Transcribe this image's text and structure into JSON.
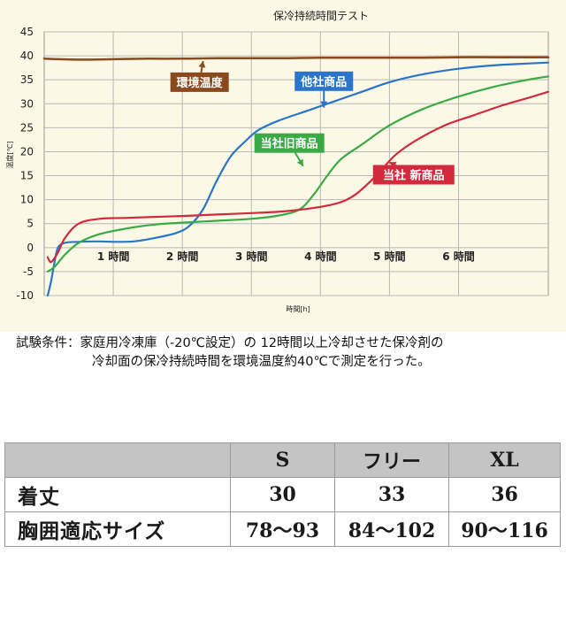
{
  "chart_data": {
    "type": "line",
    "title": "保冷持続時間テスト",
    "ylabel": "温度[℃]",
    "xlabel": "時間[h]",
    "ylim": [
      -10,
      45
    ],
    "xlim": [
      0,
      7.3
    ],
    "y_ticks": [
      "45",
      "40",
      "35",
      "30",
      "25",
      "20",
      "15",
      "10",
      "5",
      "0",
      "-5",
      "-10"
    ],
    "x_ticks": [
      {
        "value": 1,
        "label": "1 時間"
      },
      {
        "value": 2,
        "label": "2 時間"
      },
      {
        "value": 3,
        "label": "3 時間"
      },
      {
        "value": 4,
        "label": "4 時間"
      },
      {
        "value": 5,
        "label": "5 時間"
      },
      {
        "value": 6,
        "label": "6 時間"
      }
    ],
    "grid": true,
    "series": [
      {
        "name": "環境温度",
        "color": "#8b4a1e",
        "x": [
          0,
          0.5,
          1,
          1.5,
          2,
          2.5,
          3,
          3.5,
          4,
          4.5,
          5,
          5.5,
          6,
          6.5,
          7,
          7.3
        ],
        "y": [
          39.4,
          39.2,
          39.3,
          39.4,
          39.4,
          39.5,
          39.5,
          39.5,
          39.6,
          39.6,
          39.6,
          39.6,
          39.7,
          39.7,
          39.7,
          39.7
        ]
      },
      {
        "name": "他社商品",
        "color": "#2a74c9",
        "x": [
          0.05,
          0.1,
          0.15,
          0.2,
          0.3,
          0.5,
          0.8,
          1.0,
          1.3,
          1.6,
          1.9,
          2.1,
          2.3,
          2.5,
          2.7,
          2.9,
          3.1,
          3.4,
          3.8,
          4.2,
          4.6,
          5.0,
          5.5,
          6.0,
          6.5,
          7.0,
          7.3
        ],
        "y": [
          -10,
          -7,
          -3,
          0,
          1,
          1.2,
          1.3,
          1.2,
          1.3,
          2,
          3,
          4.5,
          8,
          14,
          19,
          22,
          24.5,
          26.5,
          28.5,
          30.5,
          32.5,
          34.5,
          36.2,
          37.3,
          38,
          38.4,
          38.6
        ]
      },
      {
        "name": "当社旧商品",
        "color": "#3aaa45",
        "x": [
          0.05,
          0.15,
          0.3,
          0.5,
          0.8,
          1.2,
          1.6,
          2.0,
          2.5,
          3.0,
          3.4,
          3.7,
          3.9,
          4.1,
          4.3,
          4.6,
          5.0,
          5.5,
          6.0,
          6.5,
          7.0,
          7.3
        ],
        "y": [
          -5,
          -4,
          -1.5,
          1,
          2.8,
          4,
          4.8,
          5.2,
          5.6,
          6,
          6.7,
          8,
          11,
          15,
          18.5,
          21.5,
          25.5,
          29,
          31.5,
          33.5,
          35,
          35.7
        ]
      },
      {
        "name": "当社 新商品",
        "color": "#d22a3c",
        "x": [
          0.05,
          0.1,
          0.2,
          0.3,
          0.5,
          0.8,
          1.2,
          1.6,
          2.0,
          2.5,
          3.0,
          3.5,
          4.0,
          4.3,
          4.5,
          4.7,
          4.9,
          5.1,
          5.4,
          5.8,
          6.2,
          6.6,
          7.0,
          7.3
        ],
        "y": [
          -2,
          -3,
          -1,
          2,
          5,
          6,
          6.2,
          6.4,
          6.6,
          6.9,
          7.2,
          7.6,
          8.5,
          9.5,
          11,
          13.5,
          16.5,
          19.5,
          22.5,
          25.5,
          27.5,
          29.5,
          31.2,
          32.5
        ]
      }
    ],
    "annotations": [
      {
        "text": "環境温度",
        "series": 0,
        "bg": "#8b4a1e",
        "at": [
          2.25,
          34.5
        ],
        "arrow_to": [
          2.3,
          38.9
        ]
      },
      {
        "text": "他社商品",
        "series": 1,
        "bg": "#2a74c9",
        "at": [
          4.05,
          34.7
        ],
        "arrow_to": [
          4.05,
          29.2
        ]
      },
      {
        "text": "当社旧商品",
        "series": 2,
        "bg": "#3aaa45",
        "at": [
          3.55,
          21.8
        ],
        "arrow_to": [
          3.75,
          17
        ]
      },
      {
        "text": "当社 新商品",
        "series": 3,
        "bg": "#d22a3c",
        "at": [
          5.35,
          15.2
        ],
        "arrow_to": [
          5.0,
          17.8
        ]
      }
    ]
  },
  "note": {
    "line1": "試験条件：家庭用冷凍庫（-20℃設定）の 12時間以上冷却させた保冷剤の",
    "line2": "冷却面の保冷持続時間を環境温度約40℃で測定を行った。"
  },
  "size_table": {
    "headers": [
      "S",
      "フリー",
      "XL"
    ],
    "rows": [
      {
        "label": "着丈",
        "values": [
          "30",
          "33",
          "36"
        ]
      },
      {
        "label": "胸囲適応サイズ",
        "values": [
          "78〜93",
          "84〜102",
          "90〜116"
        ]
      }
    ]
  }
}
